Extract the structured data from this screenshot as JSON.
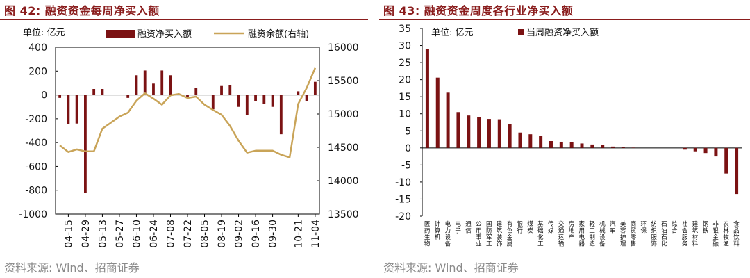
{
  "left": {
    "title": "图 42:  融资资金每周净买入额",
    "unit": "单位:  亿元",
    "legend": {
      "bar": "融资净买入额",
      "line": "融资余额(右轴)"
    },
    "source": "资料来源:  Wind、招商证券",
    "colors": {
      "bar": "#7b1213",
      "line": "#c9a458"
    }
  },
  "right": {
    "title": "图 43:  融资资金周度各行业净买入额",
    "unit": "单位:  亿元",
    "legend": {
      "bar": "当周融资净买入额"
    },
    "source": "资料来源:  Wind、招商证券",
    "colors": {
      "bar": "#7b1213"
    }
  },
  "chart_data": [
    {
      "type": "bar+line",
      "title": "图 42:  融资资金每周净买入额",
      "x_tick_labels": [
        "04-15",
        "04-29",
        "05-13",
        "05-27",
        "06-10",
        "06-24",
        "07-08",
        "07-22",
        "08-05",
        "08-19",
        "09-02",
        "09-16",
        "09-30",
        "10-21",
        "11-04"
      ],
      "x": [
        "04-08",
        "04-15",
        "04-22",
        "04-29",
        "05-06",
        "05-13",
        "05-20",
        "05-27",
        "06-03",
        "06-10",
        "06-17",
        "06-24",
        "07-01",
        "07-08",
        "07-15",
        "07-22",
        "07-29",
        "08-05",
        "08-12",
        "08-19",
        "08-26",
        "09-02",
        "09-09",
        "09-16",
        "09-23",
        "09-30",
        "10-07",
        "10-14",
        "10-21",
        "10-28",
        "11-04"
      ],
      "series": [
        {
          "name": "融资净买入额",
          "type": "bar",
          "axis": "left",
          "values": [
            -25,
            -245,
            -240,
            -820,
            50,
            50,
            0,
            0,
            -25,
            165,
            205,
            95,
            205,
            165,
            0,
            -20,
            60,
            0,
            -120,
            75,
            85,
            -100,
            -170,
            -50,
            -75,
            -100,
            -330,
            0,
            30,
            -55,
            110
          ]
        },
        {
          "name": "融资余额(右轴)",
          "type": "line",
          "axis": "right",
          "values": [
            14530,
            14430,
            14470,
            14440,
            14440,
            14780,
            14870,
            14960,
            15020,
            15200,
            15310,
            15230,
            15140,
            15280,
            15300,
            15240,
            15260,
            15140,
            15060,
            14990,
            14820,
            14600,
            14420,
            14450,
            14450,
            14450,
            14390,
            14350,
            15150,
            15390,
            15690
          ]
        }
      ],
      "ylim_left": [
        -1000,
        400
      ],
      "yticks_left": [
        -1000,
        -800,
        -600,
        -400,
        -200,
        0,
        200,
        400
      ],
      "ylim_right": [
        13500,
        16000
      ],
      "yticks_right": [
        13500,
        14000,
        14500,
        15000,
        15500,
        16000
      ]
    },
    {
      "type": "bar",
      "title": "图 43:  融资资金周度各行业净买入额",
      "categories": [
        "医药生物",
        "计算机",
        "电力设备",
        "电子",
        "通信",
        "公用事业",
        "国防军工",
        "建筑装饰",
        "有色金属",
        "银行",
        "煤炭",
        "基础化工",
        "传媒",
        "交通运输",
        "房地产",
        "家用电器",
        "轻工制造",
        "机械设备",
        "汽车",
        "美容护理",
        "商贸零售",
        "环保",
        "纺织服饰",
        "石油石化",
        "综合",
        "社会服务",
        "建筑材料",
        "钢铁",
        "非银金融",
        "农林牧渔",
        "食品饮料"
      ],
      "values": [
        28.9,
        20.6,
        16.2,
        10.5,
        9.5,
        9.0,
        8.5,
        8.4,
        7.0,
        4.5,
        4.0,
        3.5,
        2.0,
        1.8,
        1.6,
        1.3,
        1.0,
        0.8,
        0.4,
        0.2,
        0.1,
        0,
        0,
        0,
        0,
        -0.5,
        -1.0,
        -1.5,
        -2.5,
        -7.5,
        -13.5
      ],
      "ylim": [
        -20,
        35
      ],
      "yticks": [
        -20,
        -15,
        -10,
        -5,
        0,
        5,
        10,
        15,
        20,
        25,
        30,
        35
      ]
    }
  ]
}
